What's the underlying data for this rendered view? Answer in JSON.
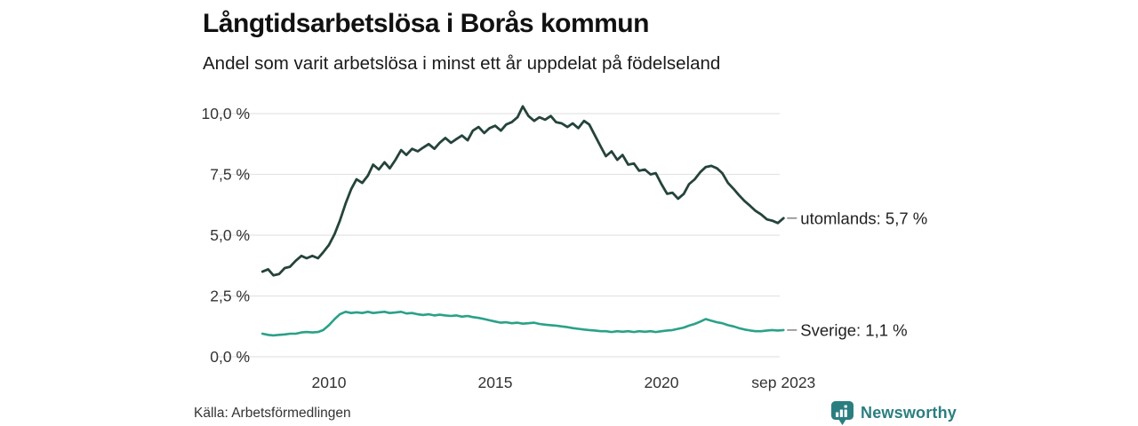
{
  "chart_data": {
    "type": "line",
    "title": "Långtidsarbetslösa i Borås kommun",
    "subtitle": "Andel som varit arbetslösa i minst ett år uppdelat på födelseland",
    "grid": "horizontal-only",
    "legend_position": "end-of-line-annotations",
    "x_axis": {
      "range": [
        2008,
        2023.75
      ],
      "ticks": [
        {
          "value": 2010,
          "label": "2010"
        },
        {
          "value": 2015,
          "label": "2015"
        },
        {
          "value": 2020,
          "label": "2020"
        },
        {
          "value": 2023.67,
          "label": "sep 2023"
        }
      ]
    },
    "y_axis": {
      "range": [
        0,
        10.5
      ],
      "unit": "%",
      "ticks": [
        {
          "value": 0,
          "label": "0,0 %"
        },
        {
          "value": 2.5,
          "label": "2,5 %"
        },
        {
          "value": 5,
          "label": "5,0 %"
        },
        {
          "value": 7.5,
          "label": "7,5 %"
        },
        {
          "value": 10,
          "label": "10,0 %"
        }
      ]
    },
    "x": [
      2008.0,
      2008.17,
      2008.33,
      2008.5,
      2008.67,
      2008.83,
      2009.0,
      2009.17,
      2009.33,
      2009.5,
      2009.67,
      2009.83,
      2010.0,
      2010.17,
      2010.33,
      2010.5,
      2010.67,
      2010.83,
      2011.0,
      2011.17,
      2011.33,
      2011.5,
      2011.67,
      2011.83,
      2012.0,
      2012.17,
      2012.33,
      2012.5,
      2012.67,
      2012.83,
      2013.0,
      2013.17,
      2013.33,
      2013.5,
      2013.67,
      2013.83,
      2014.0,
      2014.17,
      2014.33,
      2014.5,
      2014.67,
      2014.83,
      2015.0,
      2015.17,
      2015.33,
      2015.5,
      2015.67,
      2015.83,
      2016.0,
      2016.17,
      2016.33,
      2016.5,
      2016.67,
      2016.83,
      2017.0,
      2017.17,
      2017.33,
      2017.5,
      2017.67,
      2017.83,
      2018.0,
      2018.17,
      2018.33,
      2018.5,
      2018.67,
      2018.83,
      2019.0,
      2019.17,
      2019.33,
      2019.5,
      2019.67,
      2019.83,
      2020.0,
      2020.17,
      2020.33,
      2020.5,
      2020.67,
      2020.83,
      2021.0,
      2021.17,
      2021.33,
      2021.5,
      2021.67,
      2021.83,
      2022.0,
      2022.17,
      2022.33,
      2022.5,
      2022.67,
      2022.83,
      2023.0,
      2023.17,
      2023.33,
      2023.5,
      2023.67
    ],
    "series": [
      {
        "name": "utomlands",
        "annotation": "utomlands: 5,7 %",
        "color": "#25433c",
        "values": [
          3.5,
          3.6,
          3.35,
          3.4,
          3.65,
          3.7,
          3.95,
          4.15,
          4.05,
          4.15,
          4.05,
          4.3,
          4.6,
          5.05,
          5.6,
          6.3,
          6.9,
          7.3,
          7.15,
          7.45,
          7.9,
          7.7,
          8.0,
          7.75,
          8.1,
          8.5,
          8.3,
          8.55,
          8.45,
          8.6,
          8.75,
          8.55,
          8.8,
          9.0,
          8.8,
          8.95,
          9.1,
          8.9,
          9.3,
          9.45,
          9.2,
          9.4,
          9.5,
          9.3,
          9.55,
          9.65,
          9.85,
          10.3,
          9.9,
          9.7,
          9.85,
          9.75,
          9.9,
          9.65,
          9.6,
          9.45,
          9.6,
          9.4,
          9.7,
          9.55,
          9.1,
          8.65,
          8.25,
          8.45,
          8.1,
          8.3,
          7.9,
          7.95,
          7.65,
          7.7,
          7.5,
          7.55,
          7.1,
          6.7,
          6.75,
          6.5,
          6.7,
          7.1,
          7.3,
          7.6,
          7.8,
          7.85,
          7.75,
          7.55,
          7.15,
          6.9,
          6.65,
          6.4,
          6.2,
          6.0,
          5.85,
          5.65,
          5.6,
          5.5,
          5.7
        ]
      },
      {
        "name": "Sverige",
        "annotation": "Sverige: 1,1 %",
        "color": "#2aa189",
        "values": [
          0.95,
          0.9,
          0.88,
          0.9,
          0.92,
          0.95,
          0.95,
          1.0,
          1.02,
          1.0,
          1.02,
          1.1,
          1.3,
          1.55,
          1.75,
          1.85,
          1.8,
          1.83,
          1.8,
          1.85,
          1.8,
          1.83,
          1.85,
          1.8,
          1.82,
          1.85,
          1.78,
          1.8,
          1.75,
          1.72,
          1.75,
          1.7,
          1.73,
          1.7,
          1.68,
          1.7,
          1.65,
          1.68,
          1.63,
          1.6,
          1.55,
          1.5,
          1.45,
          1.4,
          1.42,
          1.38,
          1.4,
          1.36,
          1.38,
          1.4,
          1.35,
          1.32,
          1.3,
          1.28,
          1.25,
          1.22,
          1.18,
          1.15,
          1.12,
          1.1,
          1.08,
          1.05,
          1.05,
          1.02,
          1.05,
          1.03,
          1.05,
          1.02,
          1.05,
          1.03,
          1.05,
          1.02,
          1.05,
          1.08,
          1.1,
          1.15,
          1.2,
          1.28,
          1.35,
          1.45,
          1.55,
          1.48,
          1.42,
          1.38,
          1.3,
          1.25,
          1.18,
          1.12,
          1.08,
          1.05,
          1.05,
          1.08,
          1.1,
          1.08,
          1.1
        ]
      }
    ],
    "colors": {
      "gridline": "#e4e4e4",
      "tick_label": "#333333",
      "annotation_text": "#1f1f1f",
      "leader_dash": "#8c8c8c"
    }
  },
  "footer": {
    "source": "Källa: Arbetsförmedlingen",
    "brand": "Newsworthy",
    "brand_color": "#2b7e80"
  }
}
